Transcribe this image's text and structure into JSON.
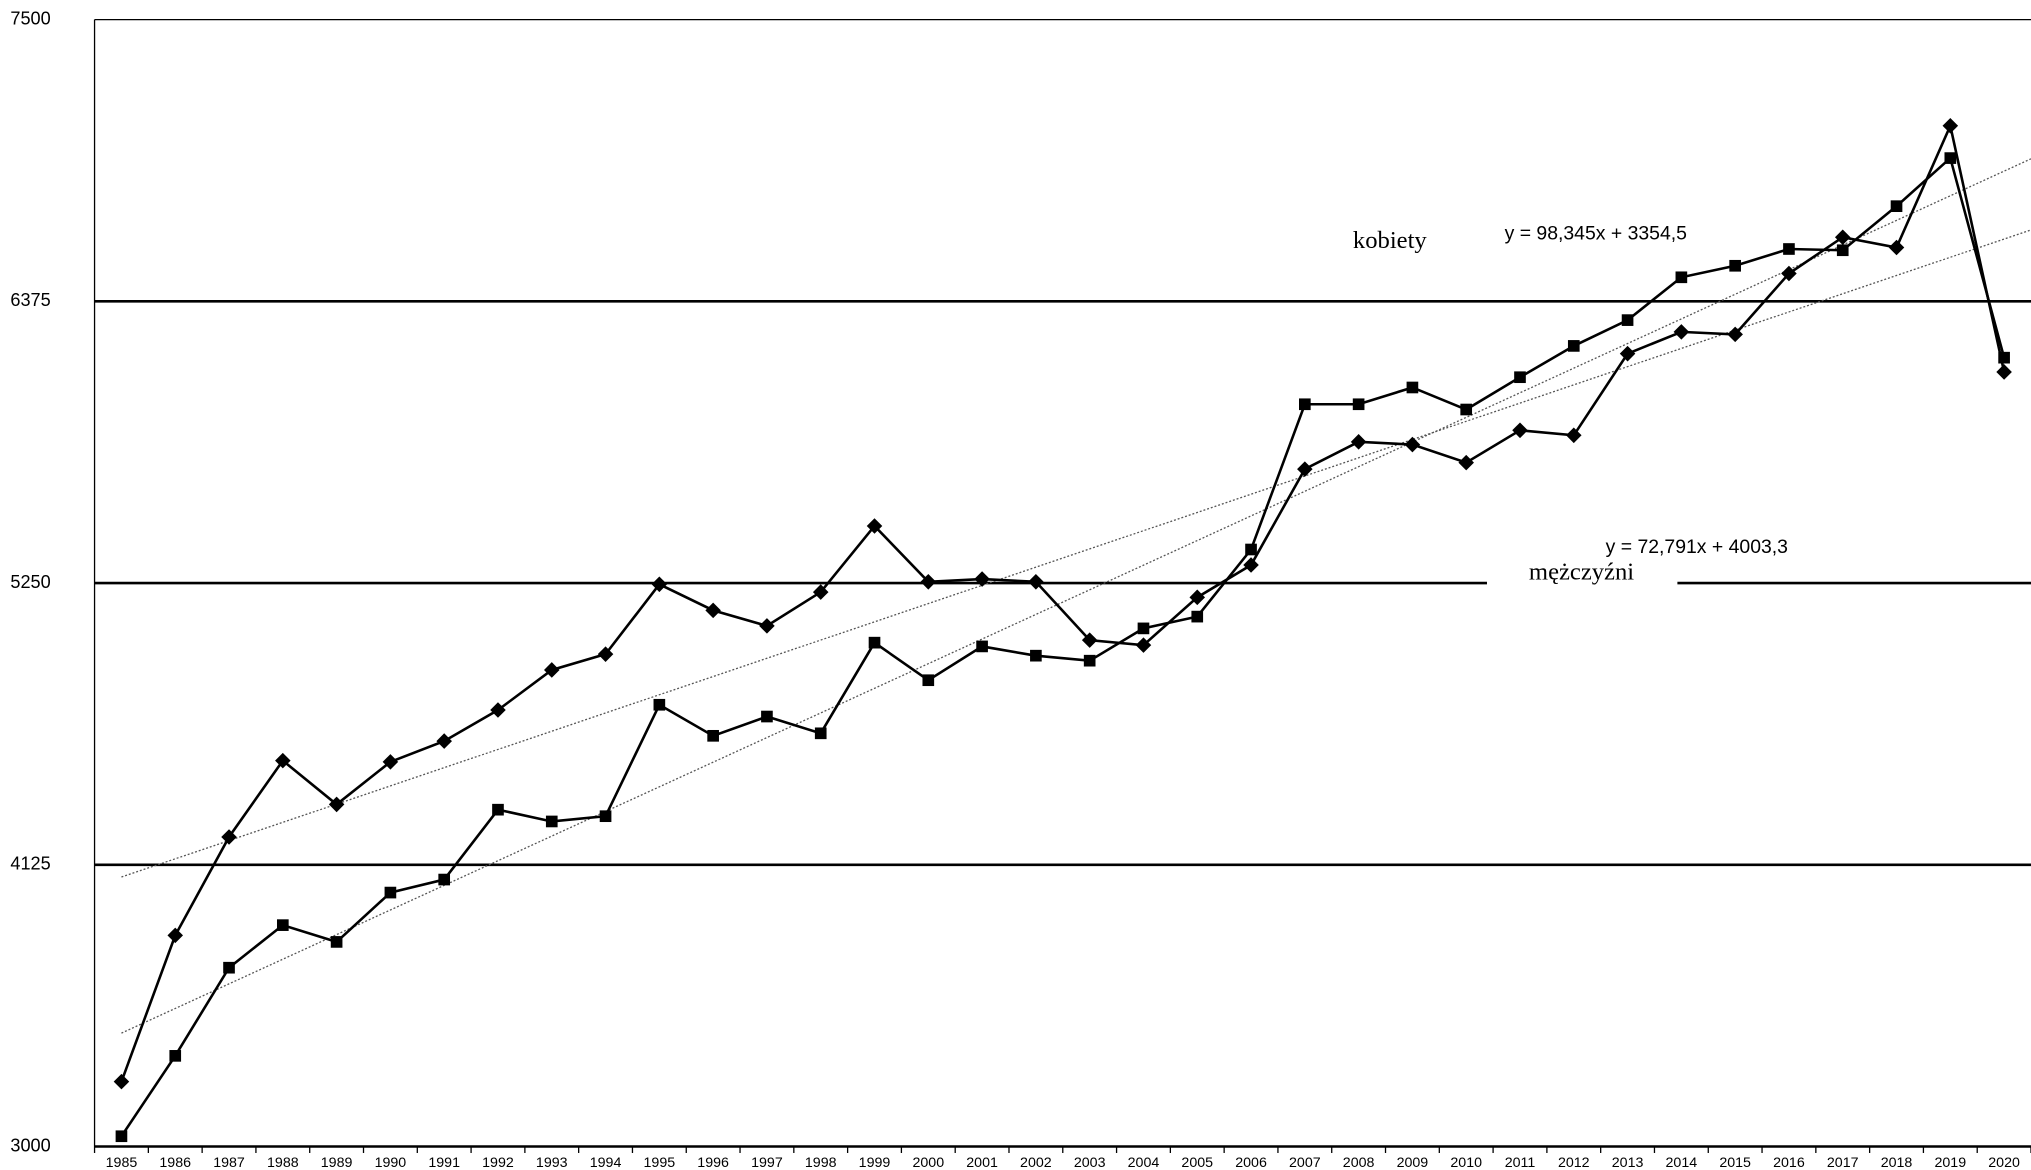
{
  "chart_data": {
    "type": "line",
    "categories": [
      "1985",
      "1986",
      "1987",
      "1988",
      "1989",
      "1990",
      "1991",
      "1992",
      "1993",
      "1994",
      "1995",
      "1996",
      "1997",
      "1998",
      "1999",
      "2000",
      "2001",
      "2002",
      "2003",
      "2004",
      "2005",
      "2006",
      "2007",
      "2008",
      "2009",
      "2010",
      "2011",
      "2012",
      "2013",
      "2014",
      "2015",
      "2016",
      "2017",
      "2018",
      "2019",
      "2020"
    ],
    "series": [
      {
        "marker": "diamond",
        "color": "#000000",
        "values": [
          3259,
          3843,
          4236,
          4541,
          4366,
          4536,
          4619,
          4743,
          4903,
          4966,
          5245,
          5141,
          5079,
          5214,
          5478,
          5255,
          5266,
          5255,
          5022,
          5002,
          5193,
          5322,
          5705,
          5814,
          5803,
          5731,
          5860,
          5840,
          6166,
          6253,
          6243,
          6486,
          6631,
          6590,
          7076,
          6093
        ]
      },
      {
        "marker": "square",
        "color": "#000000",
        "values": [
          3041,
          3362,
          3714,
          3884,
          3817,
          4014,
          4066,
          4345,
          4298,
          4319,
          4764,
          4640,
          4717,
          4650,
          5012,
          4862,
          4997,
          4960,
          4940,
          5069,
          5116,
          5384,
          5964,
          5964,
          6031,
          5943,
          6072,
          6197,
          6300,
          6471,
          6517,
          6584,
          6579,
          6755,
          6947,
          6150
        ]
      }
    ],
    "trendlines": [
      {
        "slope": 98.345,
        "intercept": 3354.5,
        "label": "y = 98,345x + 3354,5",
        "color": "#555555"
      },
      {
        "slope": 72.791,
        "intercept": 4003.3,
        "label": "y = 72,791x + 4003,3",
        "color": "#555555"
      }
    ],
    "annotations": [
      "kobiety",
      "mężczyźni"
    ],
    "ylim": [
      3000,
      7500
    ],
    "yticks": [
      3000,
      4125,
      5250,
      6375,
      7500
    ],
    "grid": true
  }
}
